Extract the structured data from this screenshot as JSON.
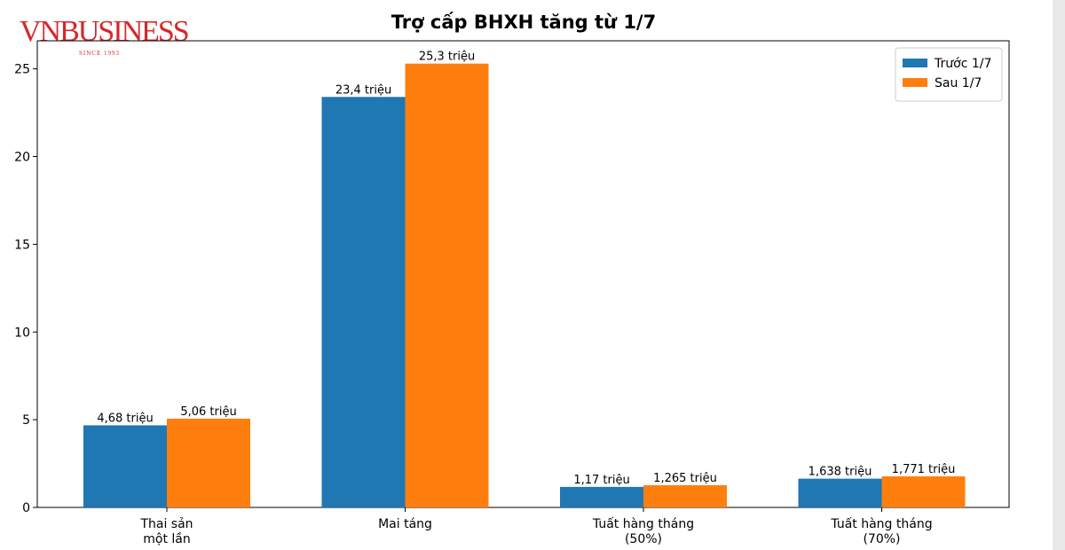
{
  "logo": {
    "name": "VNBUSINESS",
    "tagline": "SINCE 1993"
  },
  "chart_data": {
    "type": "bar",
    "title": "Trợ cấp BHXH tăng từ 1/7",
    "categories": [
      "Thai sản\nmột lần",
      "Mai táng",
      "Tuất hàng tháng\n(50%)",
      "Tuất hàng tháng\n(70%)"
    ],
    "series": [
      {
        "name": "Trước 1/7",
        "color": "#1f77b4",
        "values": [
          4.68,
          23.4,
          1.17,
          1.638
        ],
        "value_labels": [
          "4,68 triệu",
          "23,4 triệu",
          "1,17 triệu",
          "1,638 triệu"
        ]
      },
      {
        "name": "Sau 1/7",
        "color": "#ff7f0e",
        "values": [
          5.06,
          25.3,
          1.265,
          1.771
        ],
        "value_labels": [
          "5,06 triệu",
          "25,3 triệu",
          "1,265 triệu",
          "1,771 triệu"
        ]
      }
    ],
    "ylim": [
      0,
      26.6
    ],
    "yticks": [
      0,
      5,
      10,
      15,
      20,
      25
    ],
    "grid": false,
    "legend": "upper right"
  }
}
